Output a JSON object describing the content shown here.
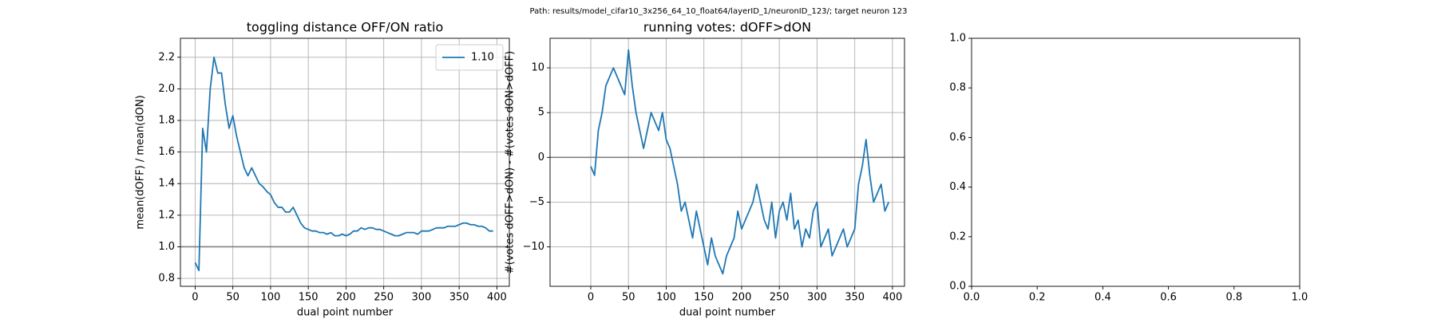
{
  "suptitle": "Path: results/model_cifar10_3x256_64_10_float64/layerID_1/neuronID_123/; target neuron 123",
  "chart_data": [
    {
      "type": "line",
      "title": "toggling distance OFF/ON ratio",
      "xlabel": "dual point number",
      "ylabel": "mean(dOFF) / mean(dON)",
      "x": [
        0,
        5,
        10,
        15,
        20,
        25,
        30,
        35,
        40,
        45,
        50,
        55,
        60,
        65,
        70,
        75,
        80,
        85,
        90,
        95,
        100,
        105,
        110,
        115,
        120,
        125,
        130,
        135,
        140,
        145,
        150,
        155,
        160,
        165,
        170,
        175,
        180,
        185,
        190,
        195,
        200,
        205,
        210,
        215,
        220,
        225,
        230,
        235,
        240,
        245,
        250,
        255,
        260,
        265,
        270,
        275,
        280,
        285,
        290,
        295,
        300,
        305,
        310,
        315,
        320,
        325,
        330,
        335,
        340,
        345,
        350,
        355,
        360,
        365,
        370,
        375,
        380,
        385,
        390,
        395
      ],
      "series": [
        {
          "name": "1.10",
          "color": "#1f77b4",
          "values": [
            0.9,
            0.85,
            1.75,
            1.6,
            2.0,
            2.2,
            2.1,
            2.1,
            1.9,
            1.75,
            1.83,
            1.7,
            1.6,
            1.5,
            1.45,
            1.5,
            1.45,
            1.4,
            1.38,
            1.35,
            1.33,
            1.28,
            1.25,
            1.25,
            1.22,
            1.22,
            1.25,
            1.2,
            1.15,
            1.12,
            1.11,
            1.1,
            1.1,
            1.09,
            1.09,
            1.08,
            1.09,
            1.07,
            1.07,
            1.08,
            1.07,
            1.08,
            1.1,
            1.1,
            1.12,
            1.11,
            1.12,
            1.12,
            1.11,
            1.11,
            1.1,
            1.09,
            1.08,
            1.07,
            1.07,
            1.08,
            1.09,
            1.09,
            1.09,
            1.08,
            1.1,
            1.1,
            1.1,
            1.11,
            1.12,
            1.12,
            1.12,
            1.13,
            1.13,
            1.13,
            1.14,
            1.15,
            1.15,
            1.14,
            1.14,
            1.13,
            1.13,
            1.12,
            1.1,
            1.1
          ]
        }
      ],
      "xlim": [
        -19.5,
        416.5
      ],
      "ylim": [
        0.75,
        2.32
      ],
      "xticks": [
        0,
        50,
        100,
        150,
        200,
        250,
        300,
        350,
        400
      ],
      "yticks": [
        0.8,
        {
          "value": 1,
          "label": "1.0"
        },
        1.2,
        1.4,
        1.6,
        1.8,
        {
          "value": 2,
          "label": "2.0"
        },
        2.2
      ],
      "grid": true,
      "legend": "upper right",
      "hline": 1,
      "hline_color": "#808080"
    },
    {
      "type": "line",
      "title": "running votes: dOFF>dON",
      "xlabel": "dual point number",
      "ylabel": "#(votes dOFF>dON) - #(votes dON>dOFF)",
      "x": [
        0,
        5,
        10,
        15,
        20,
        25,
        30,
        35,
        40,
        45,
        50,
        55,
        60,
        65,
        70,
        75,
        80,
        85,
        90,
        95,
        100,
        105,
        110,
        115,
        120,
        125,
        130,
        135,
        140,
        145,
        150,
        155,
        160,
        165,
        170,
        175,
        180,
        185,
        190,
        195,
        200,
        205,
        210,
        215,
        220,
        225,
        230,
        235,
        240,
        245,
        250,
        255,
        260,
        265,
        270,
        275,
        280,
        285,
        290,
        295,
        300,
        305,
        310,
        315,
        320,
        325,
        330,
        335,
        340,
        345,
        350,
        355,
        360,
        365,
        370,
        375,
        380,
        385,
        390,
        395
      ],
      "series": [
        {
          "color": "#1f77b4",
          "values": [
            -1,
            -2,
            3,
            5,
            8,
            9,
            10,
            9,
            8,
            7,
            12,
            8,
            5,
            3,
            1,
            3,
            5,
            4,
            3,
            5,
            2,
            1,
            -1,
            -3,
            -6,
            -5,
            -7,
            -9,
            -6,
            -8,
            -10,
            -12,
            -9,
            -11,
            -12,
            -13,
            -11,
            -10,
            -9,
            -6,
            -8,
            -7,
            -6,
            -5,
            -3,
            -5,
            -7,
            -8,
            -5,
            -9,
            -6,
            -5,
            -7,
            -4,
            -8,
            -7,
            -10,
            -8,
            -9,
            -6,
            -5,
            -10,
            -9,
            -8,
            -11,
            -10,
            -9,
            -8,
            -10,
            -9,
            -8,
            -3,
            -1,
            2,
            -2,
            -5,
            -4,
            -3,
            -6,
            -5
          ]
        }
      ],
      "xlim": [
        -54,
        416
      ],
      "ylim": [
        -14.4,
        13.3
      ],
      "xticks": [
        0,
        50,
        100,
        150,
        200,
        250,
        300,
        350,
        400
      ],
      "yticks": [
        {
          "value": -10,
          "label": "−10"
        },
        {
          "value": -5,
          "label": "−5"
        },
        0,
        5,
        10
      ],
      "grid": true,
      "hline": 0,
      "hline_color": "#808080"
    },
    {
      "type": "line",
      "xlim": [
        0,
        1
      ],
      "ylim": [
        0,
        1
      ],
      "xticks": [
        {
          "value": 0,
          "label": "0.0"
        },
        0.2,
        0.4,
        0.6,
        0.8,
        {
          "value": 1,
          "label": "1.0"
        }
      ],
      "yticks": [
        {
          "value": 0,
          "label": "0.0"
        },
        0.2,
        0.4,
        0.6,
        0.8,
        {
          "value": 1,
          "label": "1.0"
        }
      ],
      "grid": false
    }
  ]
}
